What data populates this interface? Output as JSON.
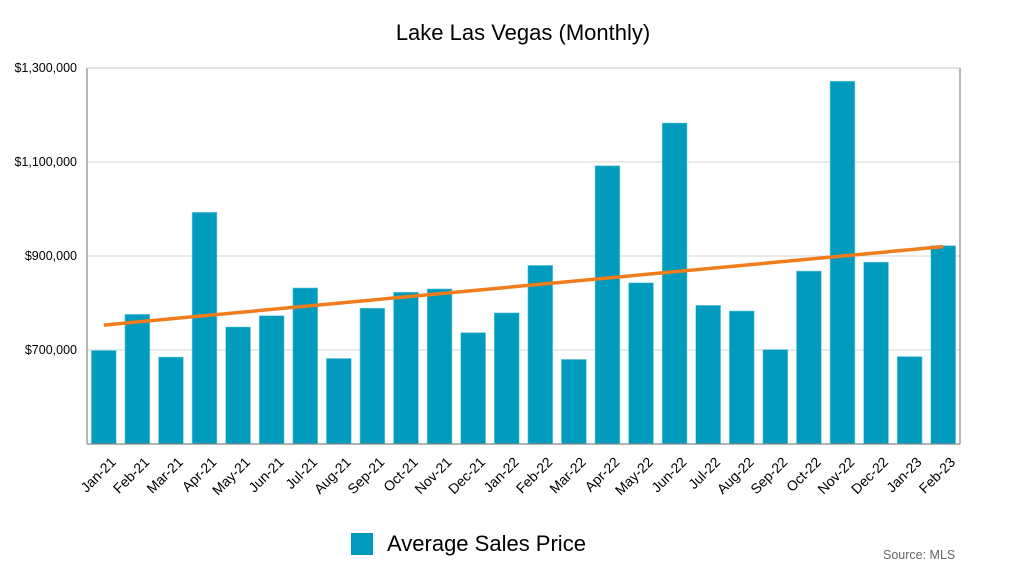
{
  "chart_data": {
    "type": "bar",
    "title": "Lake Las Vegas (Monthly)",
    "xlabel": "",
    "ylabel": "",
    "ylim": [
      500000,
      1300000
    ],
    "yticks": [
      700000,
      900000,
      1100000,
      1300000
    ],
    "ytick_labels": [
      "$700,000",
      "$900,000",
      "$1,100,000",
      "$1,300,000"
    ],
    "grid": true,
    "categories": [
      "Jan-21",
      "Feb-21",
      "Mar-21",
      "Apr-21",
      "May-21",
      "Jun-21",
      "Jul-21",
      "Aug-21",
      "Sep-21",
      "Oct-21",
      "Nov-21",
      "Dec-21",
      "Jan-22",
      "Feb-22",
      "Mar-22",
      "Apr-22",
      "May-22",
      "Jun-22",
      "Jul-22",
      "Aug-22",
      "Sep-22",
      "Oct-22",
      "Nov-22",
      "Dec-22",
      "Jan-23",
      "Feb-23"
    ],
    "series": [
      {
        "name": "Average Sales Price",
        "color": "#009bbd",
        "values": [
          699000,
          776000,
          685000,
          993000,
          749000,
          773000,
          832000,
          682000,
          789000,
          823000,
          830000,
          737000,
          779000,
          880000,
          680000,
          1092000,
          843000,
          1183000,
          795000,
          783000,
          701000,
          868000,
          1272000,
          887000,
          686000,
          922000
        ]
      }
    ],
    "trendline": {
      "type": "linear",
      "color": "#f07c1b",
      "start_value": 753000,
      "end_value": 920000
    },
    "legend": {
      "position": "bottom",
      "entries": [
        "Average Sales Price"
      ]
    },
    "annotations": [
      "Source: MLS"
    ]
  },
  "page": {
    "title": "Lake Las Vegas (Monthly)",
    "legend_label": "Average Sales Price",
    "source": "Source: MLS"
  }
}
